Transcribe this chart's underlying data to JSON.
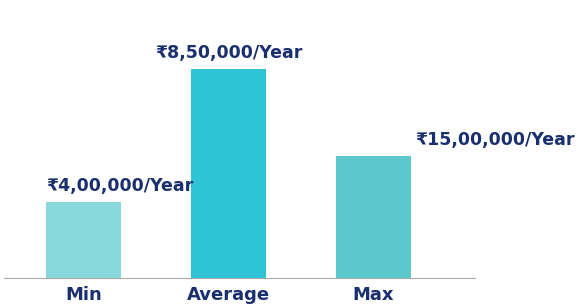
{
  "categories": [
    "Min",
    "Average",
    "Max"
  ],
  "display_values": [
    2,
    5.5,
    3.2
  ],
  "labels": [
    "₹4,00,000/Year",
    "₹8,50,000/Year",
    "₹15,00,000/Year"
  ],
  "bar_colors": [
    "#86d8da",
    "#2ec4d6",
    "#5dc8cb"
  ],
  "label_color": "#1a2f6e",
  "background_color": "#ffffff",
  "ylim": [
    0,
    7.2
  ],
  "bar_width": 0.52,
  "label_fontsize": 12.5,
  "tick_fontsize": 13,
  "figsize": [
    5.81,
    3.08
  ],
  "dpi": 100
}
